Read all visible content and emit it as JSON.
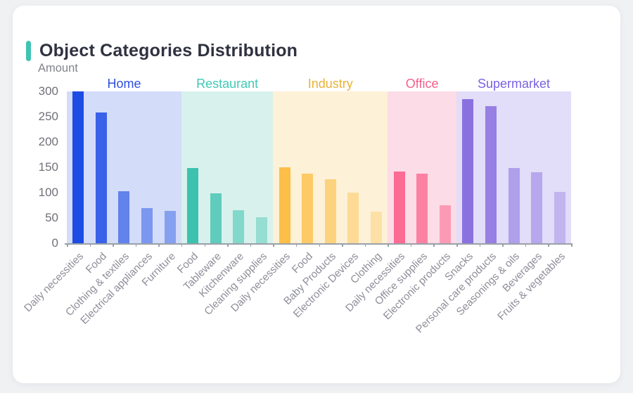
{
  "page": {
    "background": "#eff1f3",
    "card_background": "#ffffff"
  },
  "header": {
    "title": "Object Categories Distribution",
    "accent_color": "#3fc3b4"
  },
  "chart_data": {
    "type": "bar",
    "title": "Object Categories Distribution",
    "xlabel": "",
    "ylabel": "Amount",
    "ylim": [
      0,
      300
    ],
    "yticks": [
      0,
      50,
      100,
      150,
      200,
      250,
      300
    ],
    "grid": false,
    "legend_position": "top-inline-group-headers",
    "axis_color": "#9aa0a8",
    "ytick_label_color": "#6f7178",
    "xtick_label_color": "#8d8e99",
    "groups": [
      {
        "label": "Home",
        "header_color": "#2d4fe0",
        "band_color": "#d3dcf8",
        "bar_color": "#1d4ce5",
        "bar_alphas": [
          1,
          0.85,
          0.62,
          0.48,
          0.42
        ],
        "items": [
          {
            "label": "Daily necessities",
            "value": 300
          },
          {
            "label": "Food",
            "value": 258
          },
          {
            "label": "Clothing & textiles",
            "value": 103
          },
          {
            "label": "Electrical appliances",
            "value": 69
          },
          {
            "label": "Furniture",
            "value": 64
          }
        ]
      },
      {
        "label": "Restaurant",
        "header_color": "#40c9b6",
        "band_color": "#d8f1ed",
        "bar_color": "#3cc2af",
        "bar_alphas": [
          1,
          0.78,
          0.55,
          0.42
        ],
        "items": [
          {
            "label": "Food",
            "value": 148
          },
          {
            "label": "Tableware",
            "value": 98
          },
          {
            "label": "Kitchenware",
            "value": 65
          },
          {
            "label": "Cleaning supplies",
            "value": 51
          }
        ]
      },
      {
        "label": "Industry",
        "header_color": "#eab236",
        "band_color": "#fdf1d7",
        "bar_color": "#fcbf47",
        "bar_alphas": [
          1,
          0.78,
          0.62,
          0.45,
          0.35
        ],
        "items": [
          {
            "label": "Daily necessities",
            "value": 150
          },
          {
            "label": "Food",
            "value": 138
          },
          {
            "label": "Baby Products",
            "value": 126
          },
          {
            "label": "Electronic Devices",
            "value": 100
          },
          {
            "label": "Clothing",
            "value": 63
          }
        ]
      },
      {
        "label": "Office",
        "header_color": "#f5608a",
        "band_color": "#fcdce6",
        "bar_color": "#fb6b93",
        "bar_alphas": [
          1,
          0.82,
          0.58
        ],
        "items": [
          {
            "label": "Daily necessities",
            "value": 142
          },
          {
            "label": "Office supplies",
            "value": 138
          },
          {
            "label": "Electronic products",
            "value": 75
          }
        ]
      },
      {
        "label": "Supermarket",
        "header_color": "#7a61e2",
        "band_color": "#e2ddf8",
        "bar_color": "#8b71e0",
        "bar_alphas": [
          1,
          0.87,
          0.58,
          0.5,
          0.38
        ],
        "items": [
          {
            "label": "Snacks",
            "value": 285
          },
          {
            "label": "Personal care products",
            "value": 271
          },
          {
            "label": "Seasonings & oils",
            "value": 148
          },
          {
            "label": "Beverages",
            "value": 140
          },
          {
            "label": "Fruits & vegetables",
            "value": 101
          }
        ]
      }
    ]
  }
}
